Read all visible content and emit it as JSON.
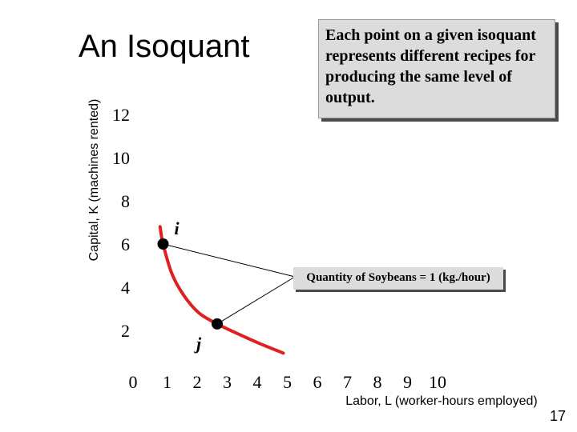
{
  "title": "An Isoquant",
  "note": "Each point on a given isoquant represents different recipes for producing the same level of output.",
  "page_number": "17",
  "chart_data": {
    "type": "line",
    "title": "An Isoquant",
    "xlabel": "Labor, L (worker-hours employed)",
    "ylabel": "Capital, K (machines rented)",
    "x_ticks": [
      "1",
      "2",
      "3",
      "4",
      "5",
      "6",
      "7",
      "8",
      "9",
      "10"
    ],
    "y_ticks": [
      "12",
      "10",
      "8",
      "6",
      "4",
      "2"
    ],
    "origin_label": "0",
    "xlim": [
      0,
      10
    ],
    "ylim": [
      0,
      12
    ],
    "series": [
      {
        "name": "Quantity of Soybeans = 1 (kg./hour)",
        "color": "#e02020",
        "x": [
          0.9,
          1.0,
          1.3,
          1.7,
          2.2,
          2.8,
          3.4,
          4.2,
          5.0
        ],
        "y": [
          6.8,
          6.0,
          4.6,
          3.6,
          2.8,
          2.3,
          1.9,
          1.4,
          0.95
        ]
      }
    ],
    "points": [
      {
        "label": "i",
        "x": 1.0,
        "y": 6.0
      },
      {
        "label": "j",
        "x": 2.8,
        "y": 2.3
      }
    ],
    "annotations": [
      "Quantity of Soybeans = 1 (kg./hour)"
    ]
  }
}
